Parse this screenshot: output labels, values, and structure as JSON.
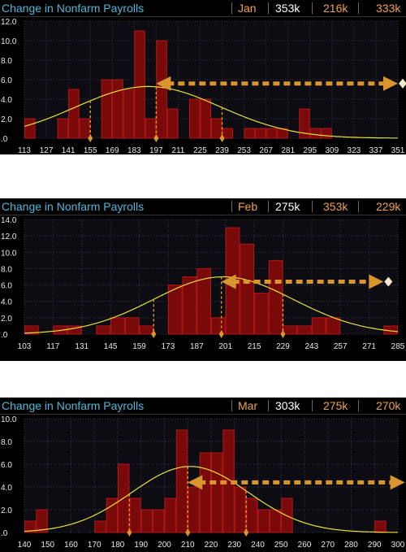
{
  "colors": {
    "bar_fill": "#7a0a0a",
    "bar_edge": "#b01818",
    "curve": "#e6e23a",
    "marker": "#d9962e",
    "title": "#4fb7d8",
    "accent_value": "#f0a24a"
  },
  "chart_data": [
    {
      "type": "bar",
      "title": "Change in Nonfarm Payrolls",
      "month": "Jan",
      "header_values": [
        "353k",
        "216k",
        "333k"
      ],
      "ylim": [
        0,
        12
      ],
      "yticks": [
        "12.0",
        "10.0",
        "8.0",
        "6.0",
        "4.0",
        "2.0",
        ".0"
      ],
      "xlim": [
        113,
        351
      ],
      "xticks": [
        "113",
        "127",
        "141",
        "155",
        "169",
        "183",
        "197",
        "211",
        "225",
        "239",
        "253",
        "267",
        "281",
        "295",
        "309",
        "323",
        "337",
        "351"
      ],
      "bin_width": 7,
      "bars": [
        {
          "x": 113,
          "value": 2
        },
        {
          "x": 134,
          "value": 2
        },
        {
          "x": 141,
          "value": 5
        },
        {
          "x": 148,
          "value": 2
        },
        {
          "x": 162,
          "value": 6
        },
        {
          "x": 169,
          "value": 6
        },
        {
          "x": 176,
          "value": 5
        },
        {
          "x": 183,
          "value": 11
        },
        {
          "x": 190,
          "value": 2
        },
        {
          "x": 197,
          "value": 10
        },
        {
          "x": 204,
          "value": 3
        },
        {
          "x": 218,
          "value": 4
        },
        {
          "x": 225,
          "value": 4
        },
        {
          "x": 232,
          "value": 2
        },
        {
          "x": 239,
          "value": 1
        },
        {
          "x": 253,
          "value": 1
        },
        {
          "x": 260,
          "value": 1
        },
        {
          "x": 267,
          "value": 1
        },
        {
          "x": 274,
          "value": 1
        },
        {
          "x": 288,
          "value": 3
        },
        {
          "x": 295,
          "value": 1
        },
        {
          "x": 302,
          "value": 1
        }
      ],
      "curve": {
        "mean": 192,
        "sd": 46,
        "peak": 5.3
      },
      "markers": [
        155,
        197,
        239
      ],
      "arrow": {
        "from": 351,
        "to": 197,
        "y": 5.6
      }
    },
    {
      "type": "bar",
      "title": "Change in Nonfarm Payrolls",
      "month": "Feb",
      "header_values": [
        "275k",
        "353k",
        "229k"
      ],
      "ylim": [
        0,
        14
      ],
      "yticks": [
        "14.0",
        "12.0",
        "10.0",
        "8.0",
        "6.0",
        "4.0",
        "2.0",
        ".0"
      ],
      "xlim": [
        103,
        285
      ],
      "xticks": [
        "103",
        "117",
        "131",
        "145",
        "159",
        "173",
        "187",
        "201",
        "215",
        "229",
        "243",
        "257",
        "271",
        "285"
      ],
      "bin_width": 7,
      "bars": [
        {
          "x": 103,
          "value": 1
        },
        {
          "x": 117,
          "value": 1
        },
        {
          "x": 124,
          "value": 1
        },
        {
          "x": 138,
          "value": 1
        },
        {
          "x": 145,
          "value": 2
        },
        {
          "x": 152,
          "value": 2
        },
        {
          "x": 159,
          "value": 1
        },
        {
          "x": 173,
          "value": 6
        },
        {
          "x": 180,
          "value": 7
        },
        {
          "x": 187,
          "value": 8
        },
        {
          "x": 194,
          "value": 2
        },
        {
          "x": 201,
          "value": 13
        },
        {
          "x": 208,
          "value": 11
        },
        {
          "x": 215,
          "value": 5
        },
        {
          "x": 222,
          "value": 9
        },
        {
          "x": 229,
          "value": 1
        },
        {
          "x": 236,
          "value": 1
        },
        {
          "x": 243,
          "value": 2
        },
        {
          "x": 250,
          "value": 2
        },
        {
          "x": 278,
          "value": 1
        }
      ],
      "curve": {
        "mean": 200,
        "sd": 34,
        "peak": 7.0
      },
      "markers": [
        166,
        199,
        229
      ],
      "arrow": {
        "from": 278,
        "to": 199,
        "y": 6.4
      }
    },
    {
      "type": "bar",
      "title": "Change in Nonfarm Payrolls",
      "month": "Mar",
      "header_values": [
        "303k",
        "275k",
        "270k"
      ],
      "ylim": [
        0,
        10
      ],
      "yticks": [
        "10.0",
        "8.0",
        "6.0",
        "4.0",
        "2.0",
        ".0"
      ],
      "xlim": [
        140,
        300
      ],
      "xticks": [
        "140",
        "150",
        "160",
        "170",
        "180",
        "190",
        "200",
        "210",
        "220",
        "230",
        "240",
        "250",
        "260",
        "270",
        "280",
        "290",
        "300"
      ],
      "bin_width": 5,
      "bars": [
        {
          "x": 140,
          "value": 1
        },
        {
          "x": 145,
          "value": 2
        },
        {
          "x": 170,
          "value": 1
        },
        {
          "x": 175,
          "value": 3
        },
        {
          "x": 180,
          "value": 6
        },
        {
          "x": 185,
          "value": 3
        },
        {
          "x": 190,
          "value": 2
        },
        {
          "x": 195,
          "value": 2
        },
        {
          "x": 200,
          "value": 3
        },
        {
          "x": 205,
          "value": 9
        },
        {
          "x": 210,
          "value": 4
        },
        {
          "x": 215,
          "value": 7
        },
        {
          "x": 220,
          "value": 7
        },
        {
          "x": 225,
          "value": 9
        },
        {
          "x": 230,
          "value": 4
        },
        {
          "x": 235,
          "value": 3
        },
        {
          "x": 240,
          "value": 2
        },
        {
          "x": 245,
          "value": 2
        },
        {
          "x": 250,
          "value": 3
        },
        {
          "x": 290,
          "value": 1
        }
      ],
      "curve": {
        "mean": 211,
        "sd": 25,
        "peak": 5.8
      },
      "markers": [
        185,
        210,
        235
      ],
      "arrow": {
        "from": 303,
        "to": 210,
        "y": 4.4
      }
    }
  ]
}
